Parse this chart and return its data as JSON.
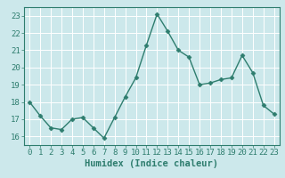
{
  "x": [
    0,
    1,
    2,
    3,
    4,
    5,
    6,
    7,
    8,
    9,
    10,
    11,
    12,
    13,
    14,
    15,
    16,
    17,
    18,
    19,
    20,
    21,
    22,
    23
  ],
  "y": [
    18.0,
    17.2,
    16.5,
    16.4,
    17.0,
    17.1,
    16.5,
    15.9,
    17.1,
    18.3,
    19.4,
    21.3,
    23.1,
    22.1,
    21.0,
    20.6,
    19.0,
    19.1,
    19.3,
    19.4,
    20.7,
    19.7,
    17.8,
    17.3
  ],
  "line_color": "#2e7d6e",
  "marker": "D",
  "marker_size": 2.5,
  "bg_color": "#cce8eb",
  "grid_color": "#ffffff",
  "xlabel": "Humidex (Indice chaleur)",
  "ylim": [
    15.5,
    23.5
  ],
  "xlim": [
    -0.5,
    23.5
  ],
  "yticks": [
    16,
    17,
    18,
    19,
    20,
    21,
    22,
    23
  ],
  "xticks": [
    0,
    1,
    2,
    3,
    4,
    5,
    6,
    7,
    8,
    9,
    10,
    11,
    12,
    13,
    14,
    15,
    16,
    17,
    18,
    19,
    20,
    21,
    22,
    23
  ],
  "tick_fontsize": 6.5,
  "label_fontsize": 7.5
}
